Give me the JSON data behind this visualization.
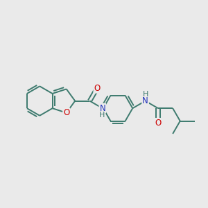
{
  "background_color": "#eaeaea",
  "bond_color": "#3d7a6e",
  "atom_colors": {
    "O": "#cc0000",
    "N": "#2233bb",
    "C": "#3d7a6e",
    "H": "#3d7a6e"
  },
  "line_width": 1.4,
  "font_size": 8.5,
  "fig_size": [
    3.0,
    3.0
  ],
  "dpi": 100
}
